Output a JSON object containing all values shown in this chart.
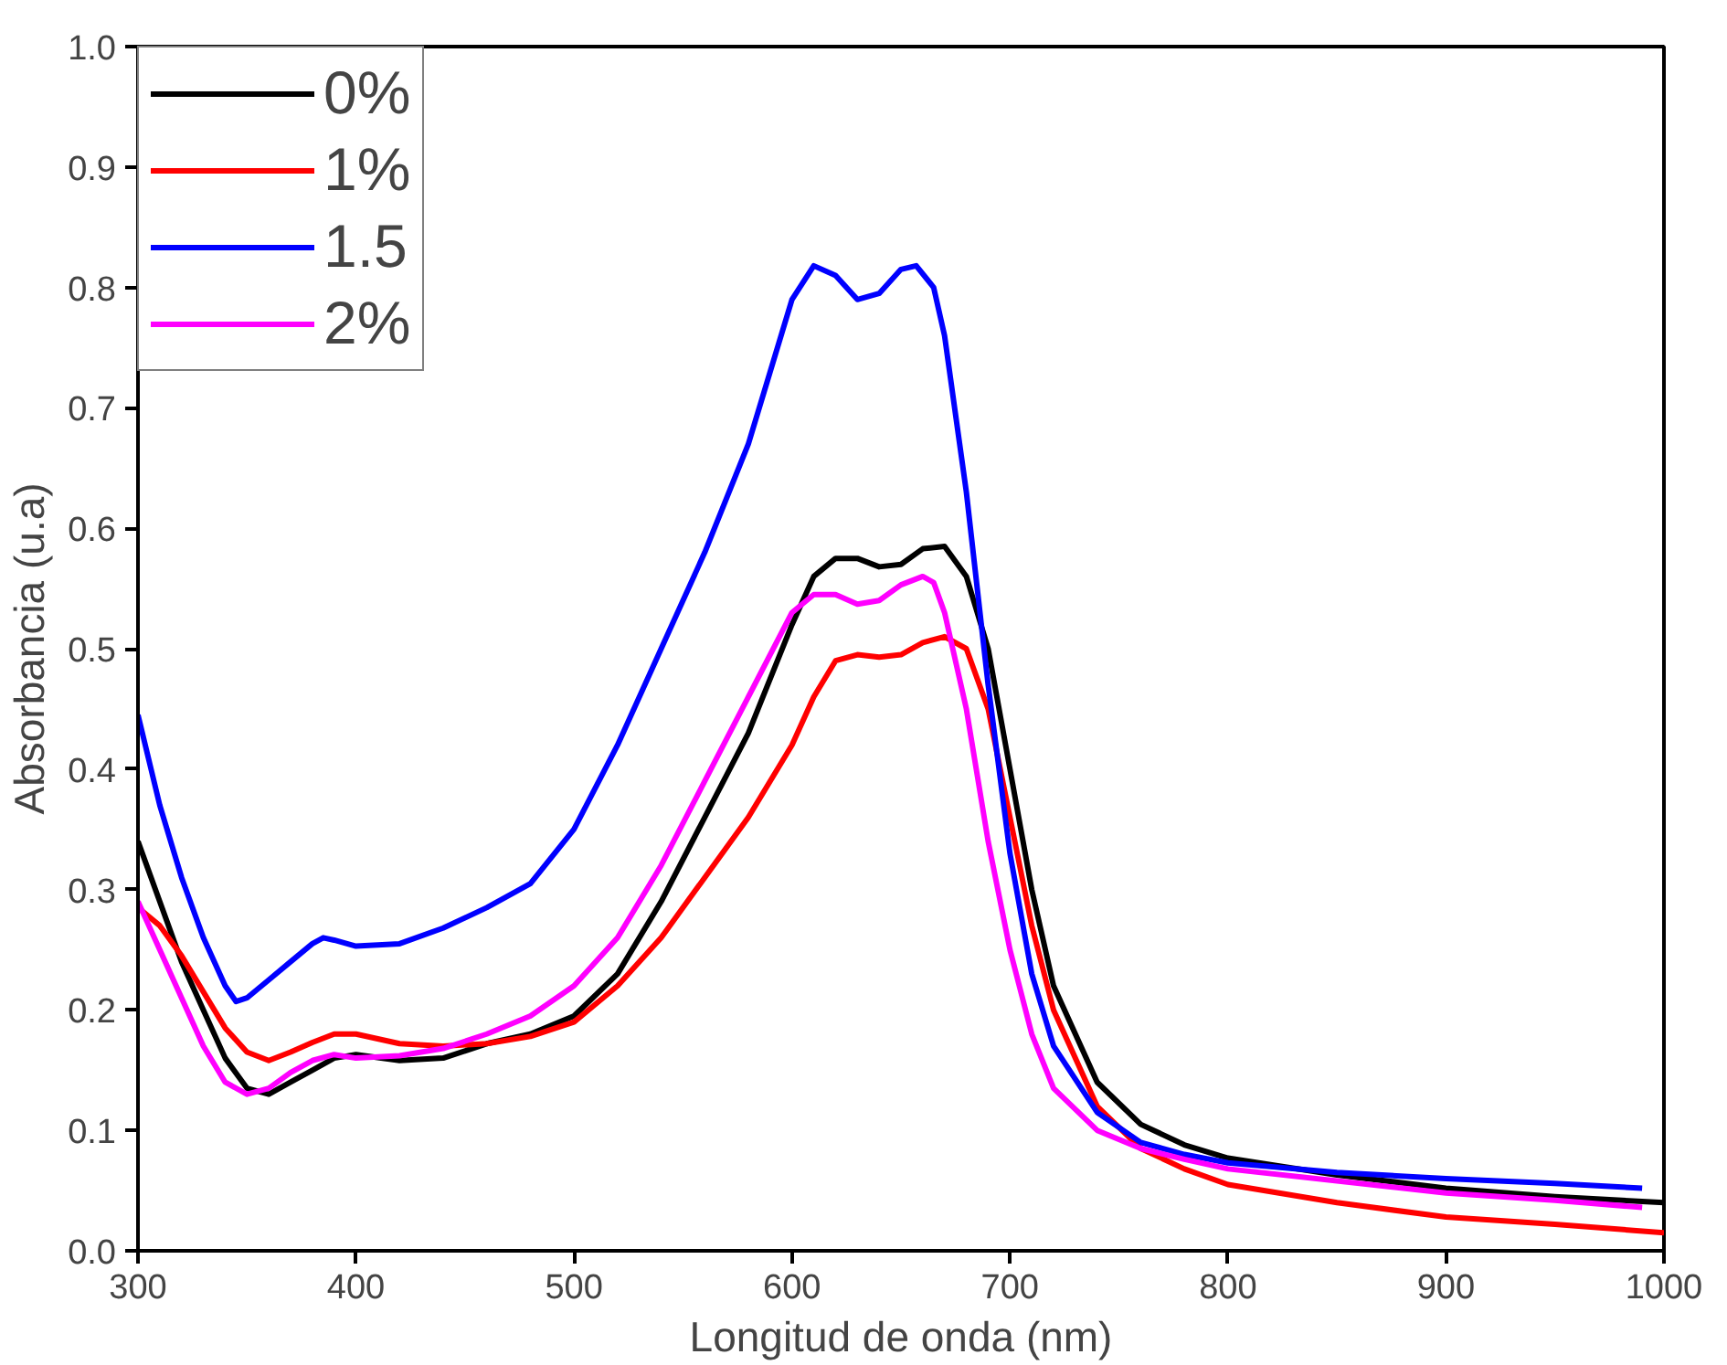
{
  "chart_data": {
    "type": "line",
    "xlabel": "Longitud de onda (nm)",
    "ylabel": "Absorbancia (u.a)",
    "xlim": [
      300,
      1000
    ],
    "xticks": [
      300,
      400,
      500,
      600,
      700,
      800,
      900,
      1000
    ],
    "ylim": [
      0,
      1
    ],
    "yticks": [
      {
        "value": 0,
        "label": "0.0"
      },
      0.1,
      0.2,
      0.3,
      0.4,
      0.5,
      0.6,
      0.7,
      0.8,
      0.9,
      {
        "value": 1,
        "label": "1.0"
      }
    ],
    "grid": false,
    "legend": "top left",
    "line_style": "solid",
    "marker": "none",
    "series": [
      {
        "name": "0%",
        "color": "#000000",
        "x": [
          300,
          310,
          320,
          330,
          340,
          350,
          360,
          370,
          380,
          390,
          400,
          420,
          440,
          460,
          480,
          500,
          520,
          540,
          560,
          580,
          600,
          610,
          620,
          630,
          640,
          650,
          660,
          670,
          680,
          690,
          700,
          710,
          720,
          740,
          760,
          780,
          800,
          850,
          900,
          950,
          1000
        ],
        "values": [
          0.34,
          0.29,
          0.24,
          0.2,
          0.16,
          0.135,
          0.13,
          0.14,
          0.15,
          0.16,
          0.163,
          0.158,
          0.16,
          0.172,
          0.18,
          0.195,
          0.23,
          0.29,
          0.36,
          0.43,
          0.52,
          0.56,
          0.575,
          0.575,
          0.568,
          0.57,
          0.583,
          0.585,
          0.56,
          0.5,
          0.4,
          0.3,
          0.22,
          0.14,
          0.105,
          0.088,
          0.077,
          0.063,
          0.052,
          0.045,
          0.04
        ]
      },
      {
        "name": "1%",
        "color": "#ff0000",
        "x": [
          300,
          310,
          320,
          330,
          340,
          350,
          360,
          370,
          380,
          390,
          400,
          420,
          440,
          460,
          480,
          500,
          520,
          540,
          560,
          580,
          600,
          610,
          620,
          630,
          640,
          650,
          660,
          670,
          680,
          690,
          700,
          710,
          720,
          740,
          760,
          780,
          800,
          850,
          900,
          950,
          1000
        ],
        "values": [
          0.285,
          0.27,
          0.245,
          0.215,
          0.185,
          0.165,
          0.158,
          0.165,
          0.173,
          0.18,
          0.18,
          0.172,
          0.17,
          0.172,
          0.178,
          0.19,
          0.22,
          0.26,
          0.31,
          0.36,
          0.42,
          0.46,
          0.49,
          0.495,
          0.493,
          0.495,
          0.505,
          0.51,
          0.5,
          0.45,
          0.36,
          0.27,
          0.2,
          0.12,
          0.085,
          0.068,
          0.055,
          0.04,
          0.028,
          0.022,
          0.015
        ]
      },
      {
        "name": "1.5",
        "color": "#0000ff",
        "x": [
          300,
          310,
          320,
          330,
          340,
          345,
          350,
          360,
          370,
          380,
          385,
          390,
          400,
          420,
          440,
          460,
          480,
          500,
          520,
          540,
          560,
          580,
          590,
          600,
          610,
          620,
          630,
          640,
          650,
          657,
          665,
          670,
          680,
          690,
          700,
          710,
          720,
          740,
          760,
          780,
          800,
          850,
          900,
          950,
          990
        ],
        "values": [
          0.445,
          0.37,
          0.31,
          0.26,
          0.22,
          0.207,
          0.21,
          0.225,
          0.24,
          0.255,
          0.26,
          0.258,
          0.253,
          0.255,
          0.268,
          0.285,
          0.305,
          0.35,
          0.42,
          0.5,
          0.58,
          0.67,
          0.73,
          0.79,
          0.818,
          0.81,
          0.79,
          0.795,
          0.815,
          0.818,
          0.8,
          0.76,
          0.63,
          0.47,
          0.33,
          0.23,
          0.17,
          0.115,
          0.09,
          0.08,
          0.073,
          0.065,
          0.06,
          0.056,
          0.052
        ]
      },
      {
        "name": "2%",
        "color": "#ff00ff",
        "x": [
          300,
          310,
          320,
          330,
          340,
          350,
          360,
          370,
          380,
          390,
          400,
          420,
          440,
          460,
          480,
          500,
          520,
          540,
          560,
          580,
          600,
          610,
          620,
          630,
          640,
          650,
          660,
          665,
          670,
          680,
          690,
          700,
          710,
          720,
          740,
          760,
          780,
          800,
          850,
          900,
          950,
          990
        ],
        "values": [
          0.29,
          0.25,
          0.21,
          0.17,
          0.14,
          0.13,
          0.135,
          0.148,
          0.158,
          0.163,
          0.16,
          0.162,
          0.168,
          0.18,
          0.195,
          0.22,
          0.26,
          0.32,
          0.39,
          0.46,
          0.53,
          0.545,
          0.545,
          0.537,
          0.54,
          0.553,
          0.56,
          0.555,
          0.53,
          0.45,
          0.34,
          0.25,
          0.18,
          0.135,
          0.1,
          0.085,
          0.076,
          0.068,
          0.058,
          0.048,
          0.042,
          0.036
        ]
      }
    ]
  }
}
